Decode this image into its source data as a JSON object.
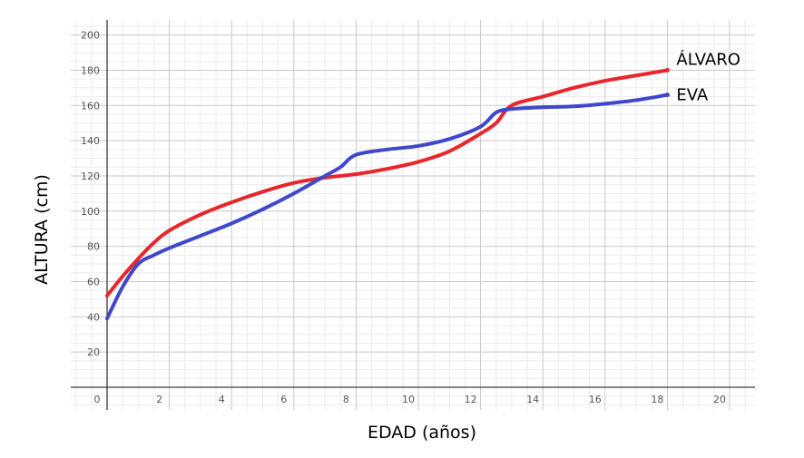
{
  "chart_data": {
    "type": "line",
    "title": "",
    "xlabel": "EDAD (años)",
    "ylabel": "ALTURA (cm)",
    "xlim": [
      0,
      20
    ],
    "ylim": [
      0,
      200
    ],
    "grid": true,
    "x_ticks": [
      0,
      2,
      4,
      6,
      8,
      10,
      12,
      14,
      16,
      18,
      20
    ],
    "y_ticks": [
      20,
      40,
      60,
      80,
      100,
      120,
      140,
      160,
      180,
      200
    ],
    "x_tick_labels": [
      "0",
      "2",
      "4",
      "6",
      "8",
      "10",
      "12",
      "14",
      "16",
      "18",
      "20"
    ],
    "y_tick_labels": [
      "20",
      "40",
      "60",
      "80",
      "100",
      "120",
      "140",
      "160",
      "180",
      "200"
    ],
    "series": [
      {
        "name": "ÁLVARO",
        "color": "#e8262b",
        "points": [
          [
            0,
            52
          ],
          [
            0.5,
            63
          ],
          [
            1,
            73
          ],
          [
            1.5,
            82
          ],
          [
            2,
            89
          ],
          [
            3,
            98
          ],
          [
            4,
            105
          ],
          [
            5,
            111
          ],
          [
            6,
            116
          ],
          [
            7,
            119
          ],
          [
            8,
            121
          ],
          [
            9,
            124
          ],
          [
            10,
            128
          ],
          [
            11,
            134
          ],
          [
            12,
            144
          ],
          [
            12.5,
            150
          ],
          [
            13,
            160
          ],
          [
            14,
            165
          ],
          [
            15,
            170
          ],
          [
            16,
            174
          ],
          [
            17,
            177
          ],
          [
            18,
            180
          ]
        ]
      },
      {
        "name": "EVA",
        "color": "#3f48cc",
        "points": [
          [
            0,
            39
          ],
          [
            0.5,
            57
          ],
          [
            1,
            70
          ],
          [
            1.5,
            75
          ],
          [
            2,
            79
          ],
          [
            3,
            86
          ],
          [
            4,
            93
          ],
          [
            5,
            101
          ],
          [
            6,
            110
          ],
          [
            7,
            120
          ],
          [
            7.5,
            125
          ],
          [
            8,
            132
          ],
          [
            9,
            135
          ],
          [
            10,
            137
          ],
          [
            11,
            141
          ],
          [
            12,
            148
          ],
          [
            12.5,
            156
          ],
          [
            13,
            158
          ],
          [
            14,
            159
          ],
          [
            15,
            159.5
          ],
          [
            16,
            161
          ],
          [
            17,
            163
          ],
          [
            18,
            166
          ]
        ]
      }
    ]
  }
}
